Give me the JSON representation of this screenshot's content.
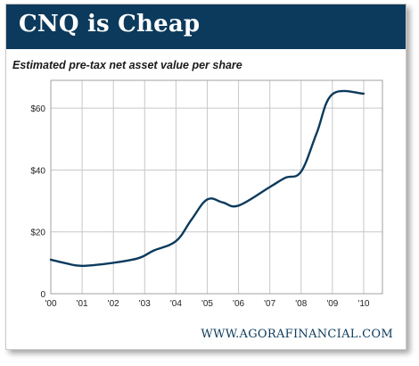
{
  "title": "CNQ is Cheap",
  "source": "WWW.AGORAFINANCIAL.COM",
  "colors": {
    "header_bg": "#0b3a5c",
    "line": "#0b3a5c",
    "grid": "#c8c8c8"
  },
  "chart_data": {
    "type": "line",
    "title": "Estimated pre-tax net asset value per share",
    "xlabel": "",
    "ylabel": "",
    "x_tick_labels": [
      "'00",
      "'01",
      "'02",
      "'03",
      "'04",
      "'05",
      "'06",
      "'07",
      "'08",
      "'09",
      "'10"
    ],
    "y_tick_labels": [
      "0",
      "$20",
      "$40",
      "$60"
    ],
    "y_ticks": [
      0,
      20,
      40,
      60
    ],
    "xlim": [
      2000,
      2010.6
    ],
    "ylim": [
      0,
      69
    ],
    "grid": true,
    "legend": "none",
    "series": [
      {
        "x": [
          2000,
          2000.5,
          2001,
          2002,
          2002.8,
          2003.3,
          2004,
          2004.5,
          2005,
          2005.5,
          2006,
          2007,
          2007.5,
          2008,
          2008.5,
          2009,
          2010
        ],
        "values": [
          11,
          9.8,
          9,
          10,
          11.5,
          14,
          17,
          24,
          30.5,
          29.5,
          28.5,
          34.5,
          37.5,
          39.5,
          52,
          64.5,
          64.7
        ]
      }
    ]
  }
}
